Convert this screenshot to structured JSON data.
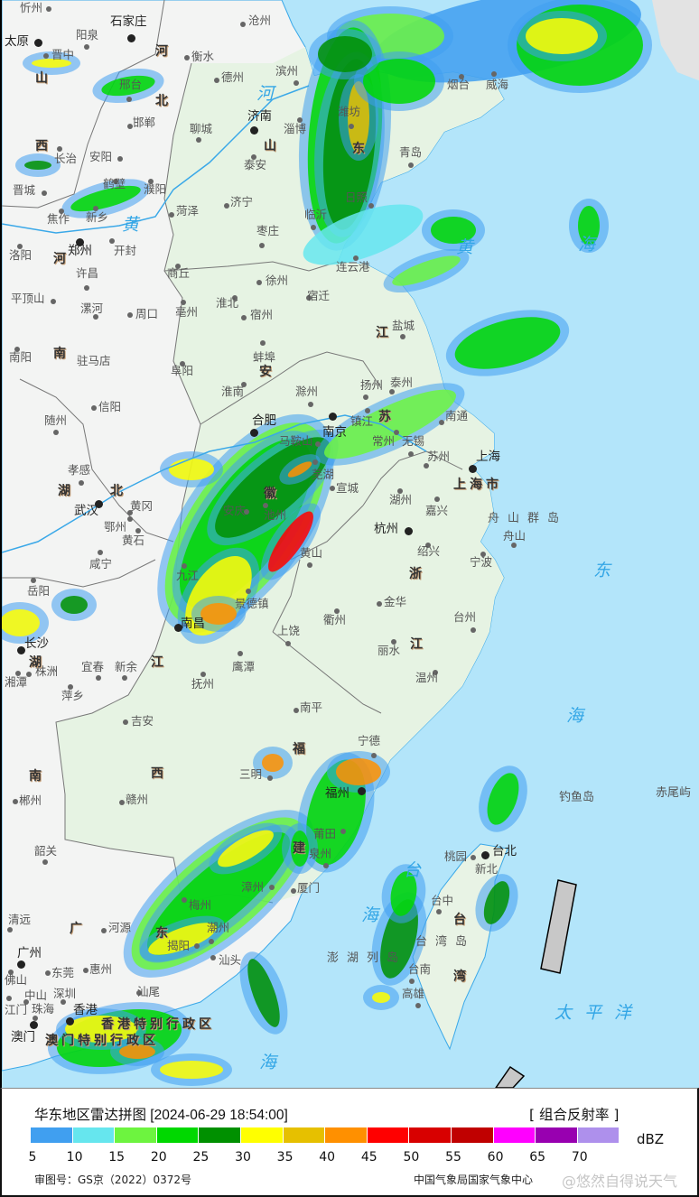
{
  "map": {
    "cities": [
      "忻州",
      "石家庄",
      "太原",
      "阳泉",
      "晋中",
      "沧州",
      "衡水",
      "德州",
      "滨州",
      "济南",
      "淄博",
      "聊城",
      "邢台",
      "邯郸",
      "长治",
      "安阳",
      "晋城",
      "鹤壁",
      "濮阳",
      "泰安",
      "济宁",
      "菏泽",
      "新乡",
      "焦作",
      "枣庄",
      "临沂",
      "洛阳",
      "郑州",
      "开封",
      "许昌",
      "商丘",
      "徐州",
      "宿迁",
      "连云港",
      "平顶山",
      "漯河",
      "周口",
      "亳州",
      "淮北",
      "宿州",
      "盐城",
      "南阳",
      "驻马店",
      "蚌埠",
      "阜阳",
      "淮南",
      "滁州",
      "扬州",
      "泰州",
      "信阳",
      "随州",
      "合肥",
      "南京",
      "镇江",
      "南通",
      "马鞍山",
      "芜湖",
      "常州",
      "无锡",
      "苏州",
      "上海",
      "宣城",
      "孝感",
      "武汉",
      "黄冈",
      "鄂州",
      "安庆",
      "池州",
      "湖州",
      "嘉兴",
      "黄石",
      "杭州",
      "舟山",
      "绍兴",
      "宁波",
      "咸宁",
      "黄山",
      "九江",
      "岳阳",
      "景德镇",
      "衢州",
      "金华",
      "台州",
      "南昌",
      "长沙",
      "上饶",
      "丽水",
      "宜春",
      "新余",
      "鹰潭",
      "株洲",
      "湘潭",
      "萍乡",
      "抚州",
      "温州",
      "南平",
      "吉安",
      "宁德",
      "三明",
      "赣州",
      "郴州",
      "福州",
      "莆田",
      "泉州",
      "韶关",
      "漳州",
      "厦门",
      "桃园",
      "台北",
      "新北",
      "梅州",
      "台中",
      "清远",
      "河源",
      "潮州",
      "揭阳",
      "台南",
      "汕头",
      "广州",
      "东莞",
      "惠州",
      "佛山",
      "高雄",
      "汕尾",
      "中山",
      "深圳",
      "珠海",
      "江门",
      "香港",
      "澳门",
      "烟台",
      "威海",
      "潍坊",
      "青岛",
      "日照"
    ],
    "islands": [
      "钓鱼岛",
      "赤尾屿",
      "澎湖列岛",
      "台湾岛",
      "舟山群岛"
    ],
    "regions": [
      "香港特别行政区",
      "澳门特别行政区",
      "上海市"
    ],
    "province_chars": [
      "山",
      "西",
      "河",
      "北",
      "山",
      "东",
      "河",
      "南",
      "湖",
      "北",
      "安",
      "徽",
      "江",
      "苏",
      "浙",
      "江",
      "江",
      "西",
      "湖",
      "南",
      "福",
      "建",
      "广",
      "东",
      "台",
      "湾"
    ],
    "water_labels": [
      "河",
      "黄",
      "黄",
      "海",
      "东",
      "海",
      "太平洋",
      "海",
      "台",
      "海"
    ]
  },
  "legend": {
    "title": "华东地区雷达拼图 [2024-06-29 18:54:00]",
    "product": "[ 组合反射率 ]",
    "unit": "dBZ",
    "colors": [
      "#409ff0",
      "#66e6ee",
      "#6df43f",
      "#00d800",
      "#009000",
      "#ffff00",
      "#e6c000",
      "#ff9000",
      "#ff0000",
      "#d80000",
      "#c00000",
      "#ff00ff",
      "#9800b0",
      "#ae90ec"
    ],
    "ticks": [
      "5",
      "10",
      "15",
      "20",
      "25",
      "30",
      "35",
      "40",
      "45",
      "50",
      "55",
      "60",
      "65",
      "70"
    ],
    "review_number": "审图号：GS京（2022）0372号",
    "source": "中国气象局国家气象中心",
    "watermark": "@悠然自得说天气"
  }
}
